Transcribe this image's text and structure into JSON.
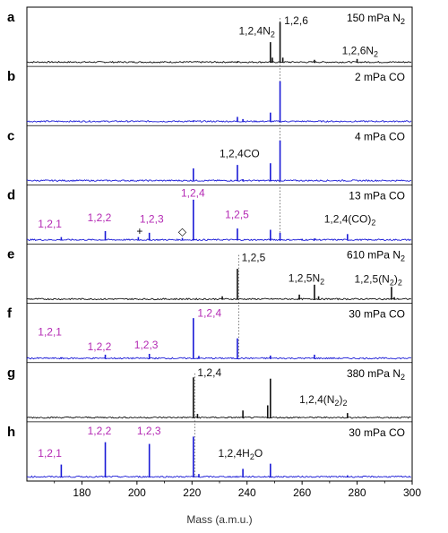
{
  "chart_data": {
    "type": "line",
    "xlabel": "Mass (a.m.u.)",
    "xlim": [
      160,
      300
    ],
    "xticks": [
      "180",
      "200",
      "220",
      "240",
      "260",
      "280",
      "300"
    ],
    "colors": {
      "black": "#111111",
      "blue": "#1a1ad6",
      "magenta": "#b42ab4"
    },
    "dotted_lines": [
      {
        "x": 252,
        "from_panel": 0,
        "to_panel": 3
      },
      {
        "x": 237,
        "from_panel": 4,
        "to_panel": 5
      },
      {
        "x": 221,
        "from_panel": 6,
        "to_panel": 7
      }
    ],
    "panels": [
      {
        "label": "a",
        "condition_main": "150 mPa N",
        "condition_sub": "2",
        "color": "black",
        "peaks": [
          [
            252,
            0.95
          ],
          [
            248.5,
            0.48
          ],
          [
            264.5,
            0.07
          ],
          [
            280,
            0.09
          ],
          [
            249.2,
            0.12
          ],
          [
            253,
            0.12
          ],
          [
            236.5,
            0.04
          ]
        ],
        "annotations": [
          {
            "text": "1,2,6",
            "sub": "",
            "suffix": "",
            "x": 253.5,
            "h": 0.9,
            "color": "black"
          },
          {
            "text": "1,2,4N",
            "sub": "2",
            "suffix": "",
            "x": 237,
            "h": 0.66,
            "color": "black"
          },
          {
            "text": "1,2,6N",
            "sub": "2",
            "suffix": "",
            "x": 274.5,
            "h": 0.2,
            "color": "black"
          }
        ],
        "markers": []
      },
      {
        "label": "b",
        "condition_main": "2 mPa CO",
        "condition_sub": "",
        "color": "blue",
        "peaks": [
          [
            252,
            0.95
          ],
          [
            248.5,
            0.22
          ],
          [
            236.5,
            0.12
          ],
          [
            238.5,
            0.07
          ],
          [
            220.5,
            0.04
          ]
        ],
        "annotations": [],
        "markers": []
      },
      {
        "label": "c",
        "condition_main": "4 mPa CO",
        "condition_sub": "",
        "color": "blue",
        "peaks": [
          [
            252,
            0.95
          ],
          [
            248.5,
            0.42
          ],
          [
            236.5,
            0.38
          ],
          [
            220.5,
            0.3
          ],
          [
            238.5,
            0.05
          ]
        ],
        "annotations": [
          {
            "text": "1,2,4CO",
            "sub": "",
            "suffix": "",
            "x": 230,
            "h": 0.56,
            "color": "black"
          }
        ],
        "markers": []
      },
      {
        "label": "d",
        "condition_main": "13 mPa CO",
        "condition_sub": "",
        "color": "blue",
        "peaks": [
          [
            220.5,
            0.95
          ],
          [
            172.5,
            0.08
          ],
          [
            188.5,
            0.22
          ],
          [
            204.5,
            0.18
          ],
          [
            200.5,
            0.08
          ],
          [
            216.5,
            0.06
          ],
          [
            236.5,
            0.28
          ],
          [
            248.5,
            0.25
          ],
          [
            252,
            0.18
          ],
          [
            264.5,
            0.05
          ],
          [
            276.5,
            0.15
          ],
          [
            260,
            0.04
          ]
        ],
        "annotations": [
          {
            "text": "1,2,1",
            "sub": "",
            "suffix": "",
            "x": 164,
            "h": 0.3,
            "color": "magenta"
          },
          {
            "text": "1,2,2",
            "sub": "",
            "suffix": "",
            "x": 182,
            "h": 0.45,
            "color": "magenta"
          },
          {
            "text": "1,2,3",
            "sub": "",
            "suffix": "",
            "x": 201,
            "h": 0.42,
            "color": "magenta"
          },
          {
            "text": "1,2,4",
            "sub": "",
            "suffix": "",
            "x": 216,
            "h": 1.02,
            "color": "magenta"
          },
          {
            "text": "1,2,5",
            "sub": "",
            "suffix": "",
            "x": 232,
            "h": 0.52,
            "color": "magenta"
          },
          {
            "text": "1,2,4(CO)",
            "sub": "2",
            "suffix": "",
            "x": 268,
            "h": 0.42,
            "color": "black"
          }
        ],
        "markers": [
          {
            "symbol": "+",
            "x": 201,
            "h": 0.14
          },
          {
            "symbol": "◇",
            "x": 216.5,
            "h": 0.13
          }
        ]
      },
      {
        "label": "e",
        "condition_main": "610 mPa N",
        "condition_sub": "2",
        "color": "black",
        "peaks": [
          [
            236.5,
            0.72
          ],
          [
            264.5,
            0.35
          ],
          [
            292.5,
            0.3
          ],
          [
            231,
            0.08
          ],
          [
            259,
            0.12
          ],
          [
            266,
            0.08
          ],
          [
            293.5,
            0.06
          ]
        ],
        "annotations": [
          {
            "text": "1,2,5",
            "sub": "",
            "suffix": "",
            "x": 238,
            "h": 0.9,
            "color": "black"
          },
          {
            "text": "1,2,5N",
            "sub": "2",
            "suffix": "",
            "x": 255,
            "h": 0.42,
            "color": "black"
          },
          {
            "text": "1,2,5(N",
            "sub": "2",
            "suffix": ")2",
            "x": 279,
            "h": 0.4,
            "color": "black"
          }
        ],
        "markers": []
      },
      {
        "label": "f",
        "condition_main": "30 mPa CO",
        "condition_sub": "",
        "color": "blue",
        "peaks": [
          [
            220.5,
            0.95
          ],
          [
            236.5,
            0.48
          ],
          [
            188.5,
            0.1
          ],
          [
            204.5,
            0.12
          ],
          [
            172.5,
            0.04
          ],
          [
            248.5,
            0.08
          ],
          [
            264.5,
            0.1
          ],
          [
            222.5,
            0.07
          ]
        ],
        "annotations": [
          {
            "text": "1,2,1",
            "sub": "",
            "suffix": "",
            "x": 164,
            "h": 0.55,
            "color": "magenta"
          },
          {
            "text": "1,2,2",
            "sub": "",
            "suffix": "",
            "x": 182,
            "h": 0.2,
            "color": "magenta"
          },
          {
            "text": "1,2,3",
            "sub": "",
            "suffix": "",
            "x": 199,
            "h": 0.24,
            "color": "magenta"
          },
          {
            "text": "1,2,4",
            "sub": "",
            "suffix": "",
            "x": 222,
            "h": 0.98,
            "color": "magenta"
          }
        ],
        "markers": []
      },
      {
        "label": "g",
        "condition_main": "380 mPa N",
        "condition_sub": "2",
        "color": "black",
        "peaks": [
          [
            220.5,
            0.95
          ],
          [
            248.5,
            0.92
          ],
          [
            238.5,
            0.18
          ],
          [
            247.5,
            0.3
          ],
          [
            276.5,
            0.12
          ],
          [
            222,
            0.1
          ]
        ],
        "annotations": [
          {
            "text": "1,2,4",
            "sub": "",
            "suffix": "",
            "x": 222,
            "h": 0.98,
            "color": "black"
          },
          {
            "text": "1,2,4(N",
            "sub": "2",
            "suffix": ")2",
            "x": 259,
            "h": 0.35,
            "color": "black"
          }
        ],
        "markers": []
      },
      {
        "label": "h",
        "condition_main": "30 mPa CO",
        "condition_sub": "",
        "color": "blue",
        "peaks": [
          [
            220.5,
            0.95
          ],
          [
            188.5,
            0.82
          ],
          [
            204.5,
            0.78
          ],
          [
            172.5,
            0.3
          ],
          [
            248.5,
            0.32
          ],
          [
            238.5,
            0.2
          ],
          [
            222.5,
            0.08
          ],
          [
            276.5,
            0.05
          ]
        ],
        "annotations": [
          {
            "text": "1,2,1",
            "sub": "",
            "suffix": "",
            "x": 164,
            "h": 0.48,
            "color": "magenta"
          },
          {
            "text": "1,2,2",
            "sub": "",
            "suffix": "",
            "x": 182,
            "h": 1.0,
            "color": "magenta"
          },
          {
            "text": "1,2,3",
            "sub": "",
            "suffix": "",
            "x": 200,
            "h": 1.0,
            "color": "magenta"
          },
          {
            "text": "1,2,4H",
            "sub": "2",
            "suffix": "O",
            "x": 229.5,
            "h": 0.48,
            "color": "black"
          }
        ],
        "markers": []
      }
    ]
  }
}
